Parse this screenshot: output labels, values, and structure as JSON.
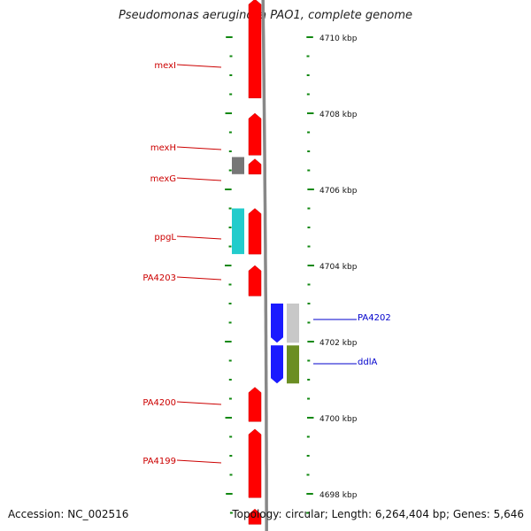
{
  "title": "Pseudomonas aeruginosa PAO1, complete genome",
  "accession": "Accession: NC_002516",
  "topology": "Topology: circular; Length: 6,264,404 bp; Genes: 5,646",
  "colors": {
    "forward_cds": "#ff0000",
    "reverse_cds": "#1a1aff",
    "backbone": "#888888",
    "tick": "#118811",
    "label_forward": "#cc0000",
    "label_reverse": "#0000cc"
  },
  "scale": {
    "unit": "kbp",
    "labels": [
      {
        "kbp": 4710,
        "text": "4710 kbp"
      },
      {
        "kbp": 4708,
        "text": "4708 kbp"
      },
      {
        "kbp": 4706,
        "text": "4706 kbp"
      },
      {
        "kbp": 4704,
        "text": "4704 kbp"
      },
      {
        "kbp": 4702,
        "text": "4702 kbp"
      },
      {
        "kbp": 4700,
        "text": "4700 kbp"
      },
      {
        "kbp": 4698,
        "text": "4698 kbp"
      }
    ]
  },
  "forward_features": [
    {
      "id": "mexI",
      "label": "mexI",
      "start_kbp": 4708.4,
      "end_kbp": 4711.0,
      "color": "#ff0000",
      "labeled": true
    },
    {
      "id": "mexH",
      "label": "mexH",
      "start_kbp": 4706.9,
      "end_kbp": 4708.0,
      "color": "#ff0000",
      "labeled": true
    },
    {
      "id": "mexG",
      "label": "mexG",
      "start_kbp": 4706.4,
      "end_kbp": 4706.8,
      "color": "#ff0000",
      "labeled": true
    },
    {
      "id": "ppgL",
      "label": "ppgL",
      "start_kbp": 4704.3,
      "end_kbp": 4705.5,
      "color": "#ff0000",
      "labeled": true
    },
    {
      "id": "PA4203",
      "label": "PA4203",
      "start_kbp": 4703.2,
      "end_kbp": 4704.0,
      "color": "#ff0000",
      "labeled": true
    },
    {
      "id": "PA4200",
      "label": "PA4200",
      "start_kbp": 4699.9,
      "end_kbp": 4700.8,
      "color": "#ff0000",
      "labeled": true
    },
    {
      "id": "PA4199",
      "label": "PA4199",
      "start_kbp": 4697.9,
      "end_kbp": 4699.7,
      "color": "#ff0000",
      "labeled": true
    },
    {
      "id": "f-edge",
      "label": "",
      "start_kbp": 4697.2,
      "end_kbp": 4697.6,
      "color": "#ff0000",
      "labeled": false
    }
  ],
  "forward_side_features": [
    {
      "id": "mexG-side",
      "start_kbp": 4706.4,
      "end_kbp": 4706.85,
      "color": "#777777"
    },
    {
      "id": "ppgL-side",
      "start_kbp": 4704.3,
      "end_kbp": 4705.5,
      "color": "#22cccc"
    }
  ],
  "reverse_features": [
    {
      "id": "PA4202",
      "label": "PA4202",
      "start_kbp": 4701.97,
      "end_kbp": 4703.0,
      "color": "#1a1aff",
      "labeled": true
    },
    {
      "id": "ddlA",
      "label": "ddlA",
      "start_kbp": 4700.9,
      "end_kbp": 4701.9,
      "color": "#1a1aff",
      "labeled": true
    }
  ],
  "reverse_side_features": [
    {
      "id": "PA4202-side",
      "start_kbp": 4701.97,
      "end_kbp": 4703.0,
      "color": "#c8c8c8"
    },
    {
      "id": "ddlA-side",
      "start_kbp": 4700.9,
      "end_kbp": 4701.9,
      "color": "#6b8e23"
    }
  ]
}
